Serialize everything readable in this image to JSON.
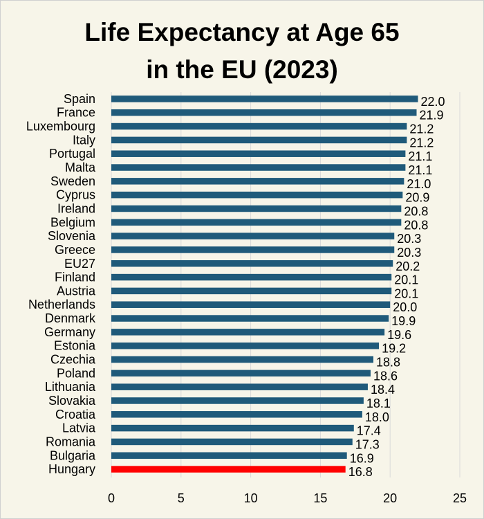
{
  "chart_data": {
    "type": "bar",
    "orientation": "horizontal",
    "title_line1": "Life Expectancy at Age 65",
    "title_line2": "in the EU (2023)",
    "categories": [
      "Spain",
      "France",
      "Luxembourg",
      "Italy",
      "Portugal",
      "Malta",
      "Sweden",
      "Cyprus",
      "Ireland",
      "Belgium",
      "Slovenia",
      "Greece",
      "EU27",
      "Finland",
      "Austria",
      "Netherlands",
      "Denmark",
      "Germany",
      "Estonia",
      "Czechia",
      "Poland",
      "Lithuania",
      "Slovakia",
      "Croatia",
      "Latvia",
      "Romania",
      "Bulgaria",
      "Hungary"
    ],
    "values": [
      22.0,
      21.9,
      21.2,
      21.2,
      21.1,
      21.1,
      21.0,
      20.9,
      20.8,
      20.8,
      20.3,
      20.3,
      20.2,
      20.1,
      20.1,
      20.0,
      19.9,
      19.6,
      19.2,
      18.8,
      18.6,
      18.4,
      18.1,
      18.0,
      17.4,
      17.3,
      16.9,
      16.8
    ],
    "value_labels": [
      "22.0",
      "21.9",
      "21.2",
      "21.2",
      "21.1",
      "21.1",
      "21.0",
      "20.9",
      "20.8",
      "20.8",
      "20.3",
      "20.3",
      "20.2",
      "20.1",
      "20.1",
      "20.0",
      "19.9",
      "19.6",
      "19.2",
      "18.8",
      "18.6",
      "18.4",
      "18.1",
      "18.0",
      "17.4",
      "17.3",
      "16.9",
      "16.8"
    ],
    "highlight": "Hungary",
    "bar_color": "#1f5a7a",
    "highlight_color": "#ff0000",
    "xlim": [
      0,
      25
    ],
    "xticks": [
      "0",
      "5",
      "10",
      "15",
      "20",
      "25"
    ],
    "grid": true,
    "xlabel": "",
    "ylabel": ""
  }
}
